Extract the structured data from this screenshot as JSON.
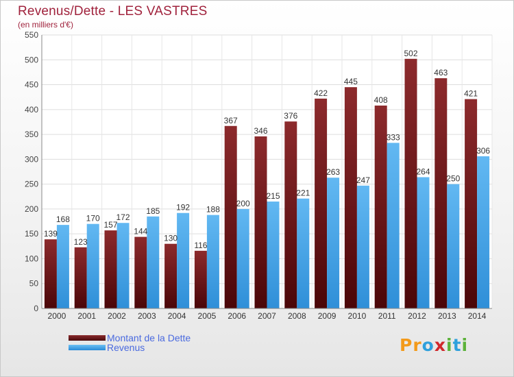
{
  "chart_data": {
    "type": "bar",
    "title": "Revenus/Dette - LES VASTRES",
    "subtitle": "(en milliers d'€)",
    "categories": [
      "2000",
      "2001",
      "2002",
      "2003",
      "2004",
      "2005",
      "2006",
      "2007",
      "2008",
      "2009",
      "2010",
      "2011",
      "2012",
      "2013",
      "2014"
    ],
    "series": [
      {
        "name": "Montant de la Dette",
        "values": [
          139,
          123,
          157,
          144,
          130,
          116,
          367,
          346,
          376,
          422,
          445,
          408,
          502,
          463,
          421
        ],
        "color": "#6e1a1c"
      },
      {
        "name": "Revenus",
        "values": [
          168,
          170,
          172,
          185,
          192,
          188,
          200,
          215,
          221,
          263,
          247,
          333,
          264,
          250,
          306
        ],
        "color": "#4aa8ec"
      }
    ],
    "ylim": [
      0,
      550
    ],
    "yticks": [
      0,
      50,
      100,
      150,
      200,
      250,
      300,
      350,
      400,
      450,
      500,
      550
    ],
    "grid": true,
    "legend_position": "bottom-left"
  },
  "brand": {
    "logo_letters": [
      "P",
      "r",
      "o",
      "x",
      "i",
      "t",
      "i"
    ],
    "logo_colors": [
      "#f39a1a",
      "#f39a1a",
      "#2ea0dc",
      "#d0282c",
      "#5cb23a",
      "#2ea0dc",
      "#5cb23a"
    ]
  }
}
